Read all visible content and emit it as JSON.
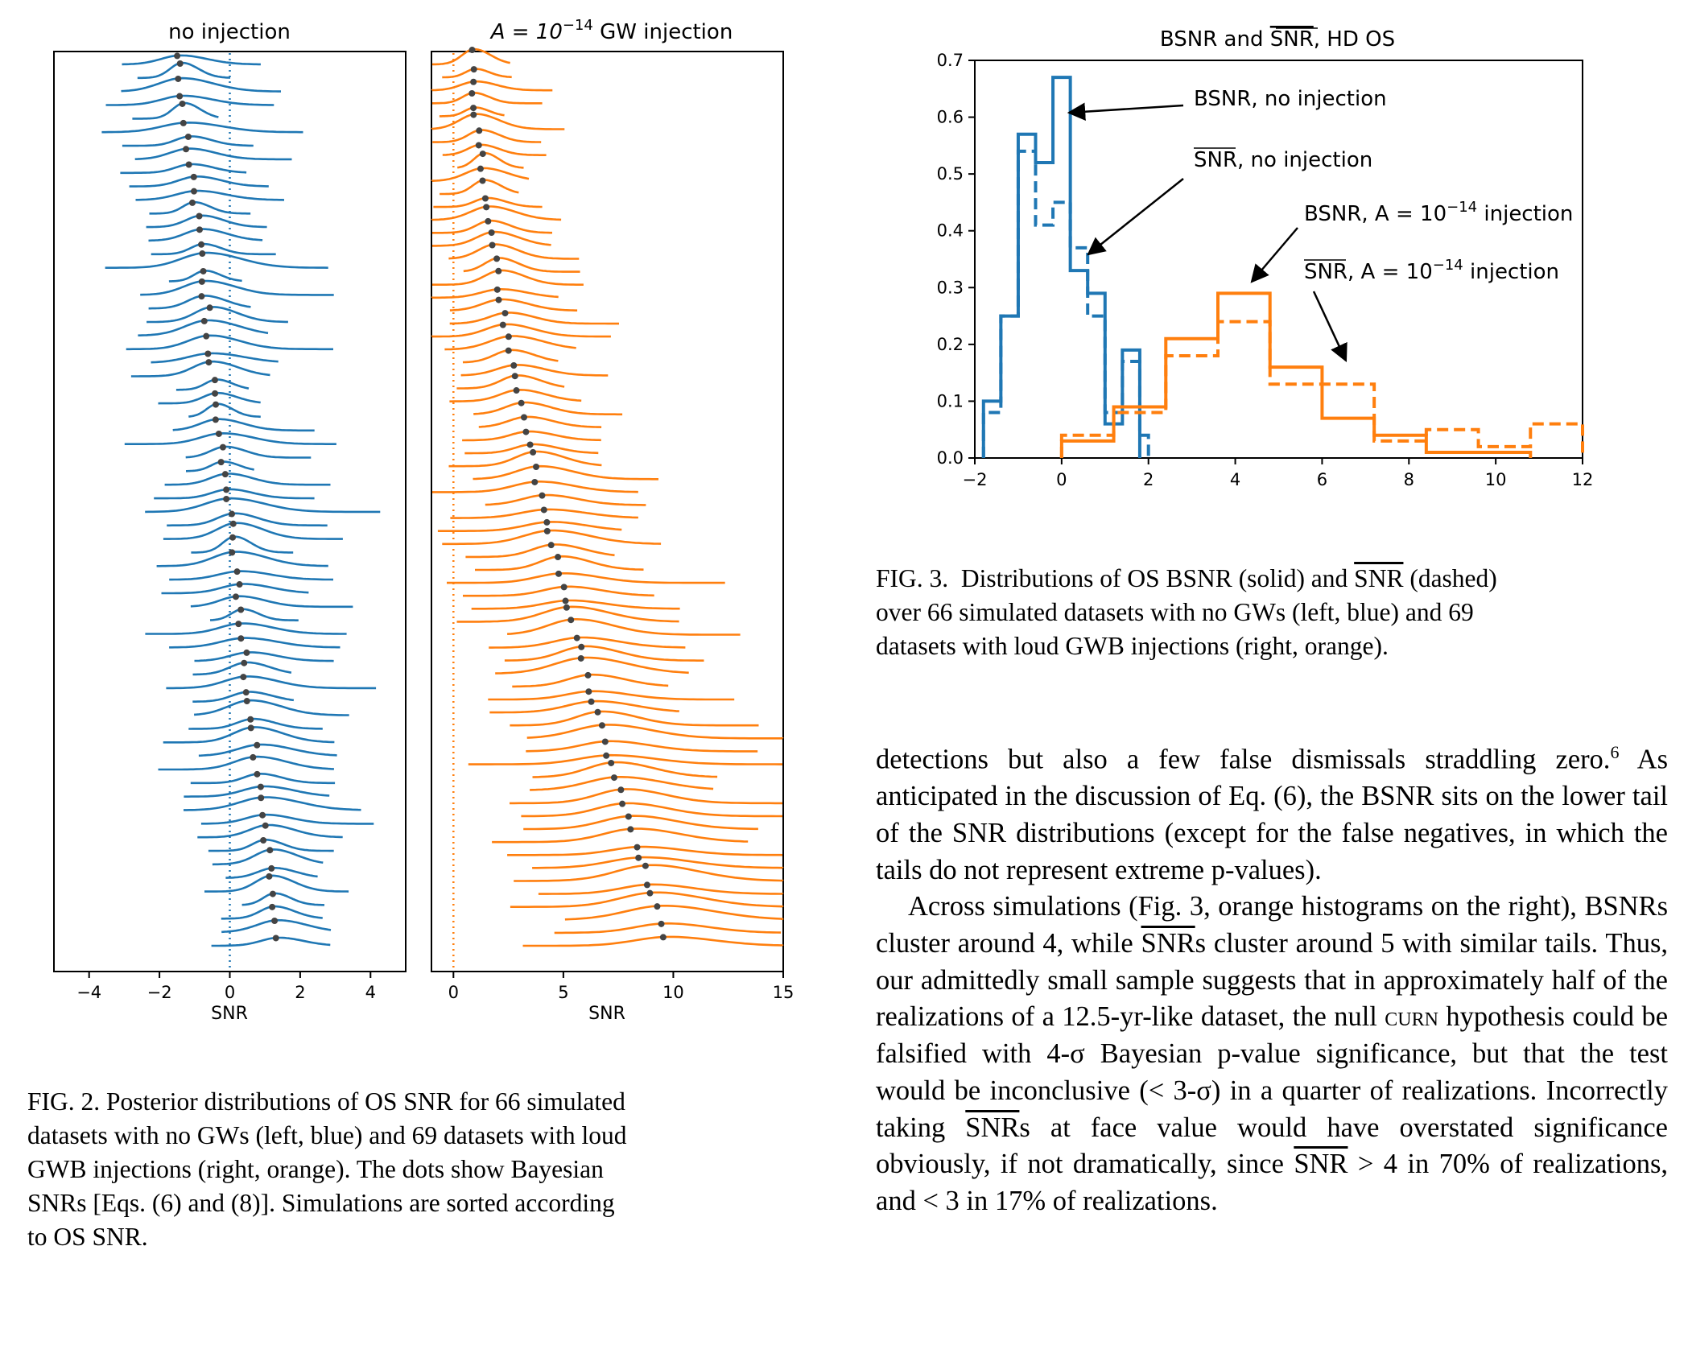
{
  "fig2": {
    "left_title": "no injection",
    "right_title": "A = 10",
    "right_title_exp": "−14",
    "right_title_tail": " GW injection",
    "xlabel": "SNR",
    "left_ticks": [
      "−4",
      "−2",
      "0",
      "2",
      "4"
    ],
    "right_ticks": [
      "0",
      "5",
      "10",
      "15"
    ],
    "left_color": "#1f77b4",
    "right_color": "#ff7f0e",
    "caption_lines": [
      "FIG. 2.  Posterior distributions of OS SNR for 66 simulated",
      "datasets with no GWs (left, blue) and 69 datasets with loud",
      "GWB injections (right, orange).  The dots show Bayesian",
      "SNRs [Eqs. (6) and (8)].  Simulations are sorted according",
      "to OS SNR."
    ]
  },
  "chart_data": [
    {
      "type": "line",
      "title": "no injection",
      "xlabel": "SNR",
      "xlim": [
        -5,
        5
      ],
      "series_count": 66,
      "color": "#1f77b4",
      "markers": "Bayesian SNR dots",
      "reference_line_x": 0
    },
    {
      "type": "line",
      "title": "A = 10^-14 GW injection",
      "xlabel": "SNR",
      "xlim": [
        -1,
        15
      ],
      "series_count": 69,
      "color": "#ff7f0e",
      "markers": "Bayesian SNR dots",
      "reference_line_x": 0
    },
    {
      "type": "histogram",
      "title": "BSNR and SNR, HD OS",
      "xlim": [
        -2,
        12
      ],
      "ylim": [
        0,
        0.7
      ],
      "xticks": [
        -2,
        0,
        2,
        4,
        6,
        8,
        10,
        12
      ],
      "yticks": [
        0.0,
        0.1,
        0.2,
        0.3,
        0.4,
        0.5,
        0.6,
        0.7
      ],
      "series": [
        {
          "name": "BSNR, no injection",
          "style": "solid",
          "color": "#1f77b4",
          "edges": [
            -1.8,
            -1.4,
            -1.0,
            -0.6,
            -0.2,
            0.2,
            0.6,
            1.0,
            1.4,
            1.8
          ],
          "values": [
            0.1,
            0.25,
            0.57,
            0.52,
            0.67,
            0.33,
            0.29,
            0.06,
            0.19
          ]
        },
        {
          "name": "SNR, no injection",
          "style": "dashed",
          "color": "#1f77b4",
          "edges": [
            -1.8,
            -1.4,
            -1.0,
            -0.6,
            -0.2,
            0.2,
            0.6,
            1.0,
            1.4,
            1.8,
            2.0
          ],
          "values": [
            0.08,
            0.25,
            0.54,
            0.41,
            0.45,
            0.37,
            0.25,
            0.08,
            0.17,
            0.04
          ]
        },
        {
          "name": "BSNR, A = 10^-14 injection",
          "style": "solid",
          "color": "#ff7f0e",
          "edges": [
            0,
            1.2,
            2.4,
            3.6,
            4.8,
            6.0,
            7.2,
            8.4,
            9.6,
            10.8
          ],
          "values": [
            0.03,
            0.09,
            0.21,
            0.29,
            0.16,
            0.07,
            0.04,
            0.01,
            0.01
          ]
        },
        {
          "name": "SNR, A = 10^-14 injection",
          "style": "dashed",
          "color": "#ff7f0e",
          "edges": [
            0,
            1.2,
            2.4,
            3.6,
            4.8,
            6.0,
            7.2,
            8.4,
            9.6,
            10.8,
            12.0
          ],
          "values": [
            0.04,
            0.08,
            0.18,
            0.24,
            0.13,
            0.13,
            0.03,
            0.05,
            0.02,
            0.06
          ]
        }
      ],
      "annotations": [
        "BSNR, no injection",
        "SNR, no injection",
        "BSNR, A = 10^-14 injection",
        "SNR, A = 10^-14 injection"
      ]
    }
  ],
  "fig3": {
    "title_a": "BSNR and ",
    "title_b": "SNR",
    "title_c": ", HD OS",
    "ann1": "BSNR, no injection",
    "ann2_ovl": "SNR",
    "ann2": ", no injection",
    "ann3_a": "BSNR, A = 10",
    "ann3_exp": "−14",
    "ann3_b": " injection",
    "ann4_ovl": "SNR",
    "ann4_a": ", A = 10",
    "ann4_exp": "−14",
    "ann4_b": " injection",
    "xticks": [
      "−2",
      "0",
      "2",
      "4",
      "6",
      "8",
      "10",
      "12"
    ],
    "yticks": [
      "0.0",
      "0.1",
      "0.2",
      "0.3",
      "0.4",
      "0.5",
      "0.6",
      "0.7"
    ],
    "caption_lines": [
      "FIG. 3.  Distributions of OS BSNR (solid) and SNR (dashed)",
      "over 66 simulated datasets with no GWs (left, blue) and 69",
      "datasets with loud GWB injections (right, orange)."
    ]
  },
  "body": {
    "p1": "detections but also a few false dismissals straddling zero.",
    "p1_fn": "6",
    "p1b": "As anticipated in the discussion of Eq. (6), the BSNR sits on the lower tail of the SNR distributions (except for the false negatives, in which the tails do not represent extreme p-values).",
    "p2a": "Across simulations (Fig. 3, orange histograms on the right), BSNRs cluster around 4, while ",
    "p2_snr1": "SNR",
    "p2b": "s cluster around 5 with similar tails. Thus, our admittedly small sample suggests that in approximately half of the realizations of a 12.5-yr-like dataset, the null ",
    "p2_curn": "curn",
    "p2c": " hypothesis could be falsified with 4-σ Bayesian p-value significance, but that the test would be inconclusive (< 3-σ) in a quarter of realizations. Incorrectly taking ",
    "p2_snr2": "SNR",
    "p2d": "s at face value would have overstated significance obviously, if not dramatically, since ",
    "p2_snr3": "SNR",
    "p2e": " > 4 in 70% of realizations, and < 3 in 17% of realizations."
  }
}
